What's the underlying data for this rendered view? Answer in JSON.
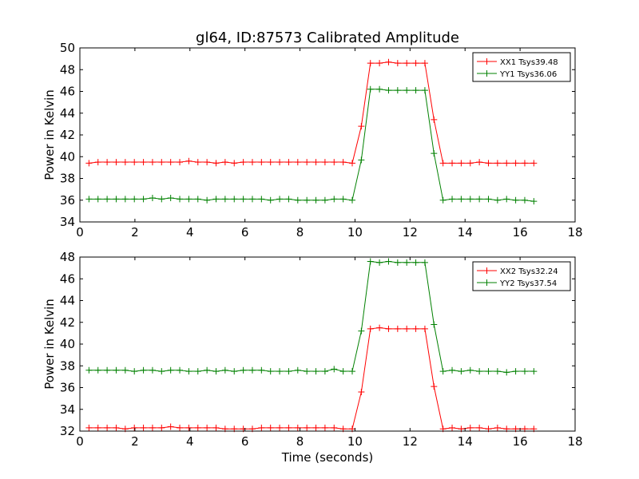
{
  "chart_data": [
    {
      "type": "line",
      "title": "gl64, ID:87573 Calibrated Amplitude",
      "xlabel": "",
      "ylabel": "Power in Kelvin",
      "xlim": [
        0,
        18
      ],
      "ylim": [
        34,
        50
      ],
      "xticks": [
        0,
        2,
        4,
        6,
        8,
        10,
        12,
        14,
        16,
        18
      ],
      "yticks": [
        34,
        36,
        38,
        40,
        42,
        44,
        46,
        48,
        50
      ],
      "grid": false,
      "legend_position": "top-right",
      "x": [
        0.33,
        0.66,
        0.99,
        1.32,
        1.65,
        1.98,
        2.31,
        2.64,
        2.97,
        3.3,
        3.63,
        3.96,
        4.29,
        4.62,
        4.95,
        5.28,
        5.61,
        5.94,
        6.27,
        6.6,
        6.93,
        7.26,
        7.59,
        7.92,
        8.25,
        8.58,
        8.91,
        9.24,
        9.57,
        9.9,
        10.23,
        10.56,
        10.89,
        11.22,
        11.55,
        11.88,
        12.21,
        12.54,
        12.87,
        13.2,
        13.53,
        13.86,
        14.19,
        14.52,
        14.85,
        15.18,
        15.51,
        15.84,
        16.17,
        16.5
      ],
      "series": [
        {
          "name": "XX1 Tsys39.48",
          "color": "#ff0000",
          "values": [
            39.4,
            39.5,
            39.5,
            39.5,
            39.5,
            39.5,
            39.5,
            39.5,
            39.5,
            39.5,
            39.5,
            39.6,
            39.5,
            39.5,
            39.4,
            39.5,
            39.4,
            39.5,
            39.5,
            39.5,
            39.5,
            39.5,
            39.5,
            39.5,
            39.5,
            39.5,
            39.5,
            39.5,
            39.5,
            39.4,
            42.8,
            48.6,
            48.6,
            48.7,
            48.6,
            48.6,
            48.6,
            48.6,
            43.4,
            39.4,
            39.4,
            39.4,
            39.4,
            39.5,
            39.4,
            39.4,
            39.4,
            39.4,
            39.4,
            39.4
          ]
        },
        {
          "name": "YY1 Tsys36.06",
          "color": "#008000",
          "values": [
            36.1,
            36.1,
            36.1,
            36.1,
            36.1,
            36.1,
            36.1,
            36.2,
            36.1,
            36.2,
            36.1,
            36.1,
            36.1,
            36.0,
            36.1,
            36.1,
            36.1,
            36.1,
            36.1,
            36.1,
            36.0,
            36.1,
            36.1,
            36.0,
            36.0,
            36.0,
            36.0,
            36.1,
            36.1,
            36.0,
            39.7,
            46.2,
            46.2,
            46.1,
            46.1,
            46.1,
            46.1,
            46.1,
            40.3,
            36.0,
            36.1,
            36.1,
            36.1,
            36.1,
            36.1,
            36.0,
            36.1,
            36.0,
            36.0,
            35.9
          ]
        }
      ]
    },
    {
      "type": "line",
      "title": "",
      "xlabel": "Time (seconds)",
      "ylabel": "Power in Kelvin",
      "xlim": [
        0,
        18
      ],
      "ylim": [
        32,
        48
      ],
      "xticks": [
        0,
        2,
        4,
        6,
        8,
        10,
        12,
        14,
        16,
        18
      ],
      "yticks": [
        32,
        34,
        36,
        38,
        40,
        42,
        44,
        46,
        48
      ],
      "grid": false,
      "legend_position": "top-right",
      "x": [
        0.33,
        0.66,
        0.99,
        1.32,
        1.65,
        1.98,
        2.31,
        2.64,
        2.97,
        3.3,
        3.63,
        3.96,
        4.29,
        4.62,
        4.95,
        5.28,
        5.61,
        5.94,
        6.27,
        6.6,
        6.93,
        7.26,
        7.59,
        7.92,
        8.25,
        8.58,
        8.91,
        9.24,
        9.57,
        9.9,
        10.23,
        10.56,
        10.89,
        11.22,
        11.55,
        11.88,
        12.21,
        12.54,
        12.87,
        13.2,
        13.53,
        13.86,
        14.19,
        14.52,
        14.85,
        15.18,
        15.51,
        15.84,
        16.17,
        16.5
      ],
      "series": [
        {
          "name": "XX2 Tsys32.24",
          "color": "#ff0000",
          "values": [
            32.3,
            32.3,
            32.3,
            32.3,
            32.2,
            32.3,
            32.3,
            32.3,
            32.3,
            32.4,
            32.3,
            32.3,
            32.3,
            32.3,
            32.3,
            32.2,
            32.2,
            32.2,
            32.2,
            32.3,
            32.3,
            32.3,
            32.3,
            32.3,
            32.3,
            32.3,
            32.3,
            32.3,
            32.2,
            32.2,
            35.6,
            41.4,
            41.5,
            41.4,
            41.4,
            41.4,
            41.4,
            41.4,
            36.1,
            32.2,
            32.3,
            32.2,
            32.3,
            32.3,
            32.2,
            32.3,
            32.2,
            32.2,
            32.2,
            32.2
          ]
        },
        {
          "name": "YY2 Tsys37.54",
          "color": "#008000",
          "values": [
            37.6,
            37.6,
            37.6,
            37.6,
            37.6,
            37.5,
            37.6,
            37.6,
            37.5,
            37.6,
            37.6,
            37.5,
            37.5,
            37.6,
            37.5,
            37.6,
            37.5,
            37.6,
            37.6,
            37.6,
            37.5,
            37.5,
            37.5,
            37.6,
            37.5,
            37.5,
            37.5,
            37.7,
            37.5,
            37.5,
            41.2,
            47.6,
            47.5,
            47.6,
            47.5,
            47.5,
            47.5,
            47.5,
            41.8,
            37.5,
            37.6,
            37.5,
            37.6,
            37.5,
            37.5,
            37.5,
            37.4,
            37.5,
            37.5,
            37.5
          ]
        }
      ]
    }
  ]
}
